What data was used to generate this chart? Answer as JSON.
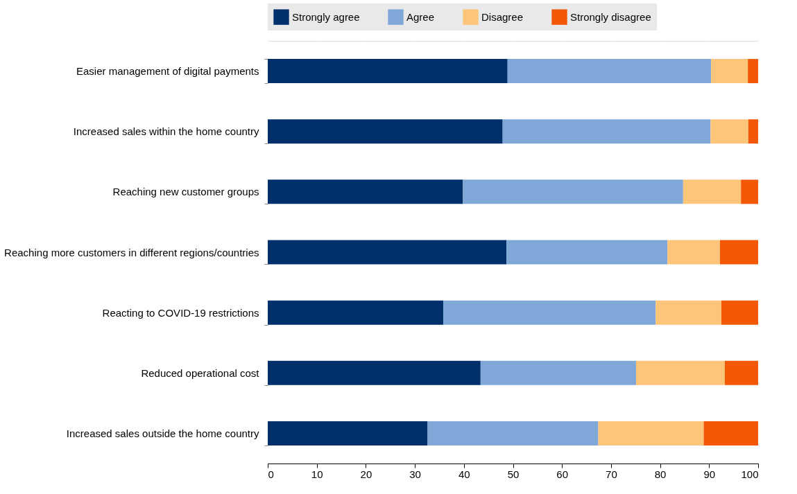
{
  "chart_data": {
    "type": "bar",
    "orientation": "horizontal",
    "stacked": true,
    "categories": [
      "Easier management of digital payments",
      "Increased sales within the home country",
      "Reaching new customer groups",
      "Reaching more customers in different regions/countries",
      "Reacting to COVID-19 restrictions",
      "Reduced operational cost",
      "Increased sales outside the home country"
    ],
    "series": [
      {
        "name": "Strongly agree",
        "color": "#00306b",
        "values": [
          48.9,
          47.9,
          39.8,
          48.7,
          35.8,
          43.4,
          32.6
        ]
      },
      {
        "name": "Agree",
        "color": "#7fa8d9",
        "values": [
          41.5,
          42.4,
          44.9,
          32.8,
          43.3,
          31.7,
          34.8
        ]
      },
      {
        "name": "Disagree",
        "color": "#fdc57a",
        "values": [
          7.5,
          7.7,
          11.8,
          10.7,
          13.4,
          18.1,
          21.5
        ]
      },
      {
        "name": "Strongly disagree",
        "color": "#f35806",
        "values": [
          2.1,
          2.0,
          3.5,
          7.8,
          7.5,
          6.8,
          11.1
        ]
      }
    ],
    "xlim": [
      0,
      100
    ],
    "xticks": [
      0,
      10,
      20,
      30,
      40,
      50,
      60,
      70,
      80,
      90,
      100
    ],
    "grid": "x",
    "legend": "top"
  }
}
